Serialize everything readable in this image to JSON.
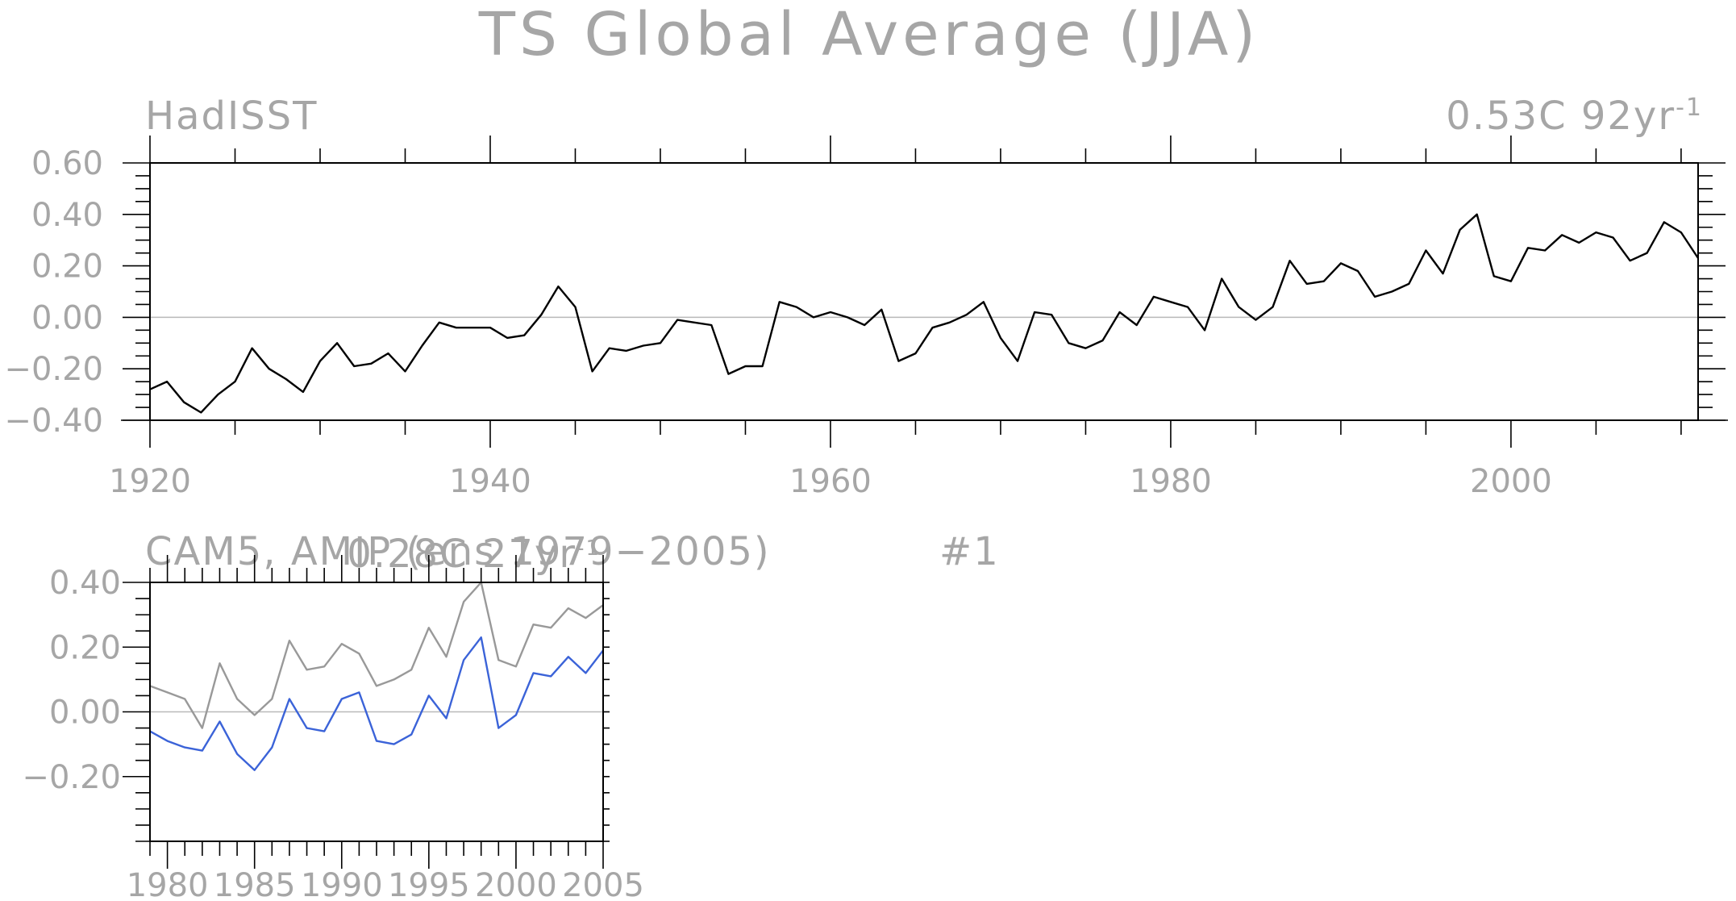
{
  "title": "TS Global Average (JJA)",
  "chart_data": [
    {
      "type": "line",
      "panel_title": "HadISST",
      "trend_label_value": "0.53C 92yr",
      "trend_label_exp": "-1",
      "xlim": [
        1920,
        2011
      ],
      "ylim": [
        -0.4,
        0.6
      ],
      "xticks": [
        1920,
        1940,
        1960,
        1980,
        2000
      ],
      "yticks": [
        -0.4,
        -0.2,
        0.0,
        0.2,
        0.4,
        0.6
      ],
      "ytick_labels": [
        "−0.40",
        "−0.20",
        "0.00",
        "0.20",
        "0.40",
        "0.60"
      ],
      "grid": false,
      "series": [
        {
          "color": "#000000",
          "x": [
            1920,
            1921,
            1922,
            1923,
            1924,
            1925,
            1926,
            1927,
            1928,
            1929,
            1930,
            1931,
            1932,
            1933,
            1934,
            1935,
            1936,
            1937,
            1938,
            1939,
            1940,
            1941,
            1942,
            1943,
            1944,
            1945,
            1946,
            1947,
            1948,
            1949,
            1950,
            1951,
            1952,
            1953,
            1954,
            1955,
            1956,
            1957,
            1958,
            1959,
            1960,
            1961,
            1962,
            1963,
            1964,
            1965,
            1966,
            1967,
            1968,
            1969,
            1970,
            1971,
            1972,
            1973,
            1974,
            1975,
            1976,
            1977,
            1978,
            1979,
            1980,
            1981,
            1982,
            1983,
            1984,
            1985,
            1986,
            1987,
            1988,
            1989,
            1990,
            1991,
            1992,
            1993,
            1994,
            1995,
            1996,
            1997,
            1998,
            1999,
            2000,
            2001,
            2002,
            2003,
            2004,
            2005,
            2006,
            2007,
            2008,
            2009,
            2010,
            2011
          ],
          "values": [
            -0.28,
            -0.25,
            -0.33,
            -0.37,
            -0.3,
            -0.25,
            -0.12,
            -0.2,
            -0.24,
            -0.29,
            -0.17,
            -0.1,
            -0.19,
            -0.18,
            -0.14,
            -0.21,
            -0.11,
            -0.02,
            -0.04,
            -0.04,
            -0.04,
            -0.08,
            -0.07,
            0.01,
            0.12,
            0.04,
            -0.21,
            -0.12,
            -0.13,
            -0.11,
            -0.1,
            -0.01,
            -0.02,
            -0.03,
            -0.22,
            -0.19,
            -0.19,
            0.06,
            0.04,
            0.0,
            0.02,
            0.0,
            -0.03,
            0.03,
            -0.17,
            -0.14,
            -0.04,
            -0.02,
            0.01,
            0.06,
            -0.08,
            -0.17,
            0.02,
            0.01,
            -0.1,
            -0.12,
            -0.09,
            0.02,
            -0.03,
            0.08,
            0.06,
            0.04,
            -0.05,
            0.15,
            0.04,
            -0.01,
            0.04,
            0.22,
            0.13,
            0.14,
            0.21,
            0.18,
            0.08,
            0.1,
            0.13,
            0.26,
            0.17,
            0.34,
            0.4,
            0.16,
            0.14,
            0.27,
            0.26,
            0.32,
            0.29,
            0.33,
            0.31,
            0.22,
            0.25,
            0.37,
            0.33,
            0.23
          ]
        }
      ]
    },
    {
      "type": "line",
      "panel_title": "CAM5, AMIP (ens 1979−2005)",
      "panel_number": "#1",
      "trend_label_value": "0.28C 27yr",
      "trend_label_exp": "-1",
      "xlim": [
        1979,
        2005
      ],
      "ylim": [
        -0.4,
        0.4
      ],
      "xticks": [
        1980,
        1985,
        1990,
        1995,
        2000,
        2005
      ],
      "yticks": [
        -0.2,
        0.0,
        0.2,
        0.4
      ],
      "ytick_labels": [
        "−0.20",
        "0.00",
        "0.20",
        "0.40"
      ],
      "grid": false,
      "series": [
        {
          "color": "#999999",
          "x": [
            1979,
            1980,
            1981,
            1982,
            1983,
            1984,
            1985,
            1986,
            1987,
            1988,
            1989,
            1990,
            1991,
            1992,
            1993,
            1994,
            1995,
            1996,
            1997,
            1998,
            1999,
            2000,
            2001,
            2002,
            2003,
            2004,
            2005
          ],
          "values": [
            0.08,
            0.06,
            0.04,
            -0.05,
            0.15,
            0.04,
            -0.01,
            0.04,
            0.22,
            0.13,
            0.14,
            0.21,
            0.18,
            0.08,
            0.1,
            0.13,
            0.26,
            0.17,
            0.34,
            0.4,
            0.16,
            0.14,
            0.27,
            0.26,
            0.32,
            0.29,
            0.33
          ]
        },
        {
          "color": "#3b63d8",
          "x": [
            1979,
            1980,
            1981,
            1982,
            1983,
            1984,
            1985,
            1986,
            1987,
            1988,
            1989,
            1990,
            1991,
            1992,
            1993,
            1994,
            1995,
            1996,
            1997,
            1998,
            1999,
            2000,
            2001,
            2002,
            2003,
            2004,
            2005
          ],
          "values": [
            -0.06,
            -0.09,
            -0.11,
            -0.12,
            -0.03,
            -0.13,
            -0.18,
            -0.11,
            0.04,
            -0.05,
            -0.06,
            0.04,
            0.06,
            -0.09,
            -0.1,
            -0.07,
            0.05,
            -0.02,
            0.16,
            0.23,
            -0.05,
            -0.01,
            0.12,
            0.11,
            0.17,
            0.12,
            0.19
          ]
        }
      ]
    }
  ]
}
